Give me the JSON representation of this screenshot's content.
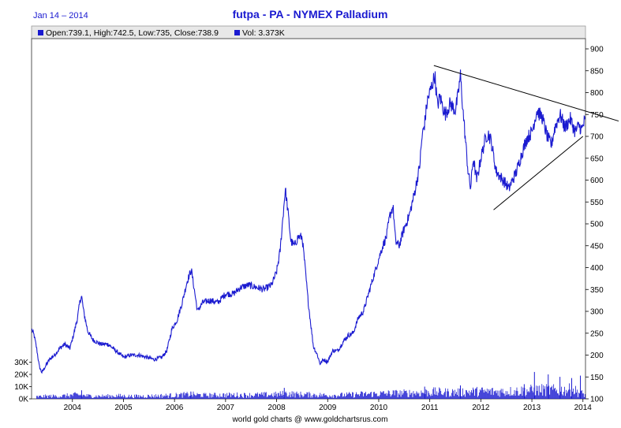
{
  "header": {
    "date": "Jan 14 – 2014",
    "title": "futpa - PA  -  NYMEX Palladium"
  },
  "legend": {
    "ohlc": "Open:739.1, High:742.5, Low:735, Close:738.9",
    "vol": "Vol: 3.373K"
  },
  "footer": {
    "credit": "world gold charts @ www.goldchartsrus.com"
  },
  "colors": {
    "series": "#1a1ad0",
    "volume": "#1a1ad0",
    "trendline": "#000000",
    "legend_bg": "#e8e8e8"
  },
  "chart_data": {
    "type": "line",
    "x_unit": "year",
    "xlim": [
      2003.2,
      2014.05
    ],
    "ylim": [
      100,
      900
    ],
    "y_ticks": [
      100,
      150,
      200,
      250,
      300,
      350,
      400,
      450,
      500,
      550,
      600,
      650,
      700,
      750,
      800,
      850,
      900
    ],
    "x_ticks": [
      {
        "v": 2004,
        "label": "2004"
      },
      {
        "v": 2005,
        "label": "2005"
      },
      {
        "v": 2006,
        "label": "2006"
      },
      {
        "v": 2007,
        "label": "2007"
      },
      {
        "v": 2008,
        "label": "2008"
      },
      {
        "v": 2009,
        "label": "2009"
      },
      {
        "v": 2010,
        "label": "2010"
      },
      {
        "v": 2011,
        "label": "2011"
      },
      {
        "v": 2012,
        "label": "2012"
      },
      {
        "v": 2013,
        "label": "2013"
      },
      {
        "v": 2014,
        "label": "2014"
      }
    ],
    "volume_ticks": [
      {
        "v": 0,
        "label": "0K"
      },
      {
        "v": 10000,
        "label": "10K"
      },
      {
        "v": 20000,
        "label": "20K"
      },
      {
        "v": 30000,
        "label": "30K"
      }
    ],
    "volume_max": 40000,
    "grid": false,
    "legend_position": "top-left",
    "price": [
      [
        2003.2,
        260
      ],
      [
        2003.25,
        245
      ],
      [
        2003.3,
        215
      ],
      [
        2003.35,
        175
      ],
      [
        2003.4,
        160
      ],
      [
        2003.45,
        170
      ],
      [
        2003.55,
        190
      ],
      [
        2003.65,
        200
      ],
      [
        2003.75,
        215
      ],
      [
        2003.85,
        225
      ],
      [
        2003.95,
        215
      ],
      [
        2004.02,
        245
      ],
      [
        2004.1,
        285
      ],
      [
        2004.15,
        325
      ],
      [
        2004.18,
        335
      ],
      [
        2004.22,
        300
      ],
      [
        2004.3,
        255
      ],
      [
        2004.4,
        235
      ],
      [
        2004.55,
        225
      ],
      [
        2004.7,
        225
      ],
      [
        2004.85,
        210
      ],
      [
        2005.0,
        195
      ],
      [
        2005.15,
        200
      ],
      [
        2005.3,
        200
      ],
      [
        2005.45,
        195
      ],
      [
        2005.6,
        190
      ],
      [
        2005.75,
        195
      ],
      [
        2005.85,
        210
      ],
      [
        2005.95,
        260
      ],
      [
        2006.05,
        280
      ],
      [
        2006.15,
        320
      ],
      [
        2006.25,
        370
      ],
      [
        2006.33,
        395
      ],
      [
        2006.4,
        340
      ],
      [
        2006.45,
        300
      ],
      [
        2006.55,
        320
      ],
      [
        2006.7,
        325
      ],
      [
        2006.85,
        320
      ],
      [
        2007.0,
        340
      ],
      [
        2007.15,
        340
      ],
      [
        2007.3,
        355
      ],
      [
        2007.45,
        360
      ],
      [
        2007.6,
        355
      ],
      [
        2007.75,
        350
      ],
      [
        2007.9,
        360
      ],
      [
        2008.0,
        390
      ],
      [
        2008.07,
        440
      ],
      [
        2008.12,
        510
      ],
      [
        2008.17,
        580
      ],
      [
        2008.22,
        530
      ],
      [
        2008.28,
        460
      ],
      [
        2008.35,
        450
      ],
      [
        2008.42,
        470
      ],
      [
        2008.5,
        470
      ],
      [
        2008.55,
        410
      ],
      [
        2008.62,
        320
      ],
      [
        2008.72,
        220
      ],
      [
        2008.8,
        200
      ],
      [
        2008.85,
        180
      ],
      [
        2008.92,
        190
      ],
      [
        2009.0,
        185
      ],
      [
        2009.1,
        210
      ],
      [
        2009.2,
        210
      ],
      [
        2009.3,
        230
      ],
      [
        2009.4,
        245
      ],
      [
        2009.5,
        250
      ],
      [
        2009.6,
        285
      ],
      [
        2009.7,
        300
      ],
      [
        2009.8,
        340
      ],
      [
        2009.9,
        380
      ],
      [
        2010.0,
        420
      ],
      [
        2010.08,
        450
      ],
      [
        2010.15,
        470
      ],
      [
        2010.22,
        520
      ],
      [
        2010.28,
        540
      ],
      [
        2010.33,
        460
      ],
      [
        2010.4,
        450
      ],
      [
        2010.5,
        490
      ],
      [
        2010.6,
        520
      ],
      [
        2010.7,
        570
      ],
      [
        2010.8,
        630
      ],
      [
        2010.85,
        700
      ],
      [
        2010.9,
        730
      ],
      [
        2010.95,
        780
      ],
      [
        2011.05,
        820
      ],
      [
        2011.1,
        840
      ],
      [
        2011.15,
        770
      ],
      [
        2011.2,
        790
      ],
      [
        2011.3,
        750
      ],
      [
        2011.4,
        775
      ],
      [
        2011.5,
        760
      ],
      [
        2011.55,
        790
      ],
      [
        2011.6,
        840
      ],
      [
        2011.65,
        760
      ],
      [
        2011.7,
        690
      ],
      [
        2011.75,
        620
      ],
      [
        2011.8,
        580
      ],
      [
        2011.85,
        650
      ],
      [
        2011.92,
        600
      ],
      [
        2012.0,
        650
      ],
      [
        2012.1,
        700
      ],
      [
        2012.15,
        705
      ],
      [
        2012.2,
        690
      ],
      [
        2012.3,
        620
      ],
      [
        2012.4,
        605
      ],
      [
        2012.5,
        590
      ],
      [
        2012.55,
        580
      ],
      [
        2012.6,
        595
      ],
      [
        2012.7,
        620
      ],
      [
        2012.8,
        660
      ],
      [
        2012.9,
        695
      ],
      [
        2013.0,
        710
      ],
      [
        2013.1,
        760
      ],
      [
        2013.15,
        750
      ],
      [
        2013.2,
        745
      ],
      [
        2013.3,
        700
      ],
      [
        2013.38,
        680
      ],
      [
        2013.45,
        720
      ],
      [
        2013.55,
        750
      ],
      [
        2013.65,
        720
      ],
      [
        2013.75,
        740
      ],
      [
        2013.85,
        710
      ],
      [
        2013.92,
        725
      ],
      [
        2013.98,
        715
      ],
      [
        2014.04,
        739
      ]
    ],
    "volume": [
      [
        2003.3,
        1800
      ],
      [
        2003.5,
        2200
      ],
      [
        2003.8,
        2400
      ],
      [
        2004.1,
        3500
      ],
      [
        2004.3,
        2500
      ],
      [
        2004.6,
        2300
      ],
      [
        2004.9,
        2600
      ],
      [
        2005.2,
        2200
      ],
      [
        2005.5,
        2400
      ],
      [
        2005.8,
        2700
      ],
      [
        2006.1,
        3200
      ],
      [
        2006.3,
        3800
      ],
      [
        2006.6,
        3000
      ],
      [
        2006.9,
        3200
      ],
      [
        2007.2,
        3300
      ],
      [
        2007.5,
        3200
      ],
      [
        2007.8,
        3500
      ],
      [
        2008.0,
        3700
      ],
      [
        2008.2,
        4500
      ],
      [
        2008.4,
        3800
      ],
      [
        2008.6,
        3600
      ],
      [
        2008.8,
        3300
      ],
      [
        2009.0,
        3000
      ],
      [
        2009.3,
        3200
      ],
      [
        2009.6,
        3800
      ],
      [
        2009.9,
        4200
      ],
      [
        2010.2,
        4600
      ],
      [
        2010.5,
        4800
      ],
      [
        2010.8,
        5200
      ],
      [
        2011.1,
        5800
      ],
      [
        2011.4,
        5400
      ],
      [
        2011.7,
        6000
      ],
      [
        2012.0,
        6200
      ],
      [
        2012.3,
        6100
      ],
      [
        2012.6,
        6400
      ],
      [
        2012.9,
        7000
      ],
      [
        2013.2,
        7600
      ],
      [
        2013.5,
        7200
      ],
      [
        2013.8,
        7800
      ],
      [
        2014.04,
        3373
      ]
    ],
    "volume_spikes": [
      [
        2004.18,
        7000
      ],
      [
        2006.32,
        6000
      ],
      [
        2008.15,
        9000
      ],
      [
        2010.9,
        10000
      ],
      [
        2011.6,
        11000
      ],
      [
        2012.85,
        12000
      ],
      [
        2013.05,
        22000
      ],
      [
        2013.32,
        20000
      ],
      [
        2013.55,
        18000
      ],
      [
        2013.78,
        17000
      ],
      [
        2013.95,
        19000
      ]
    ],
    "trendlines": [
      {
        "name": "resistance",
        "from": [
          2011.08,
          862
        ],
        "to": [
          2014.7,
          735
        ]
      },
      {
        "name": "support",
        "from": [
          2012.25,
          532
        ],
        "to": [
          2014.0,
          700
        ]
      }
    ]
  }
}
